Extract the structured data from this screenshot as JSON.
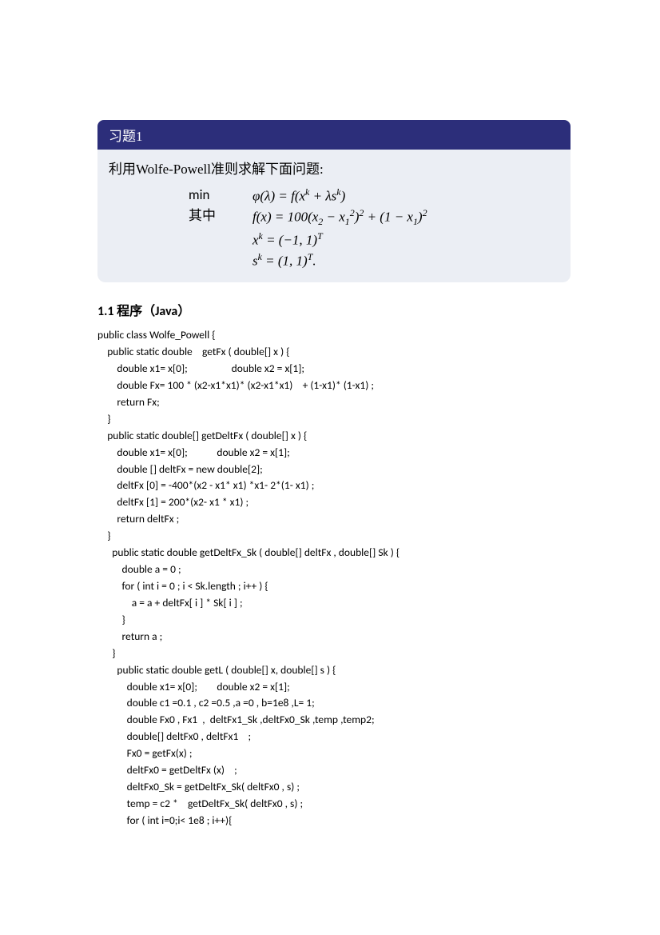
{
  "problem": {
    "header": "习题1",
    "intro": "利用Wolfe-Powell准则求解下面问题:",
    "label_min": "min",
    "label_where": "其中",
    "eq1": "φ(λ) = f(xᵏ + λsᵏ)",
    "eq2": "f(x) = 100(x₂ − x₁²)² + (1 − x₁)²",
    "eq3": "xᵏ = (−1, 1)ᵀ",
    "eq4": "sᵏ = (1, 1)ᵀ."
  },
  "section_title": "1.1 程序（Java）",
  "code_lines": [
    "public class Wolfe_Powell {",
    "    public static double    getFx ( double[] x ) {",
    "        double x1= x[0];                  double x2 = x[1];",
    "        double Fx= 100 * (x2-x1*x1)* (x2-x1*x1)    + (1-x1)* (1-x1) ;",
    "        return Fx;",
    "    }",
    "    public static double[] getDeltFx ( double[] x ) {",
    "        double x1= x[0];            double x2 = x[1];",
    "        double [] deltFx = new double[2];",
    "        deltFx [0] = -400*(x2 - x1* x1) *x1- 2*(1- x1) ;",
    "        deltFx [1] = 200*(x2- x1 * x1) ;",
    "        return deltFx ;",
    "    }",
    "      public static double getDeltFx_Sk ( double[] deltFx , double[] Sk ) {",
    "          double a = 0 ;",
    "          for ( int i = 0 ; i < Sk.length ; i++ ) {",
    "              a = a + deltFx[ i ] * Sk[ i ] ;",
    "          }",
    "          return a ;",
    "      }",
    "        public static double getL ( double[] x, double[] s ) {",
    "            double x1= x[0];        double x2 = x[1];",
    "            double c1 =0.1 , c2 =0.5 ,a =0 , b=1e8 ,L= 1;",
    "            double Fx0 , Fx1  ,  deltFx1_Sk ,deltFx0_Sk ,temp ,temp2;",
    "            double[] deltFx0 , deltFx1    ;",
    "            Fx0 = getFx(x) ;",
    "            deltFx0 = getDeltFx (x)    ;",
    "            deltFx0_Sk = getDeltFx_Sk( deltFx0 , s) ;",
    "            temp = c2 *    getDeltFx_Sk( deltFx0 , s) ;",
    "            for ( int i=0;i< 1e8 ; i++){"
  ]
}
